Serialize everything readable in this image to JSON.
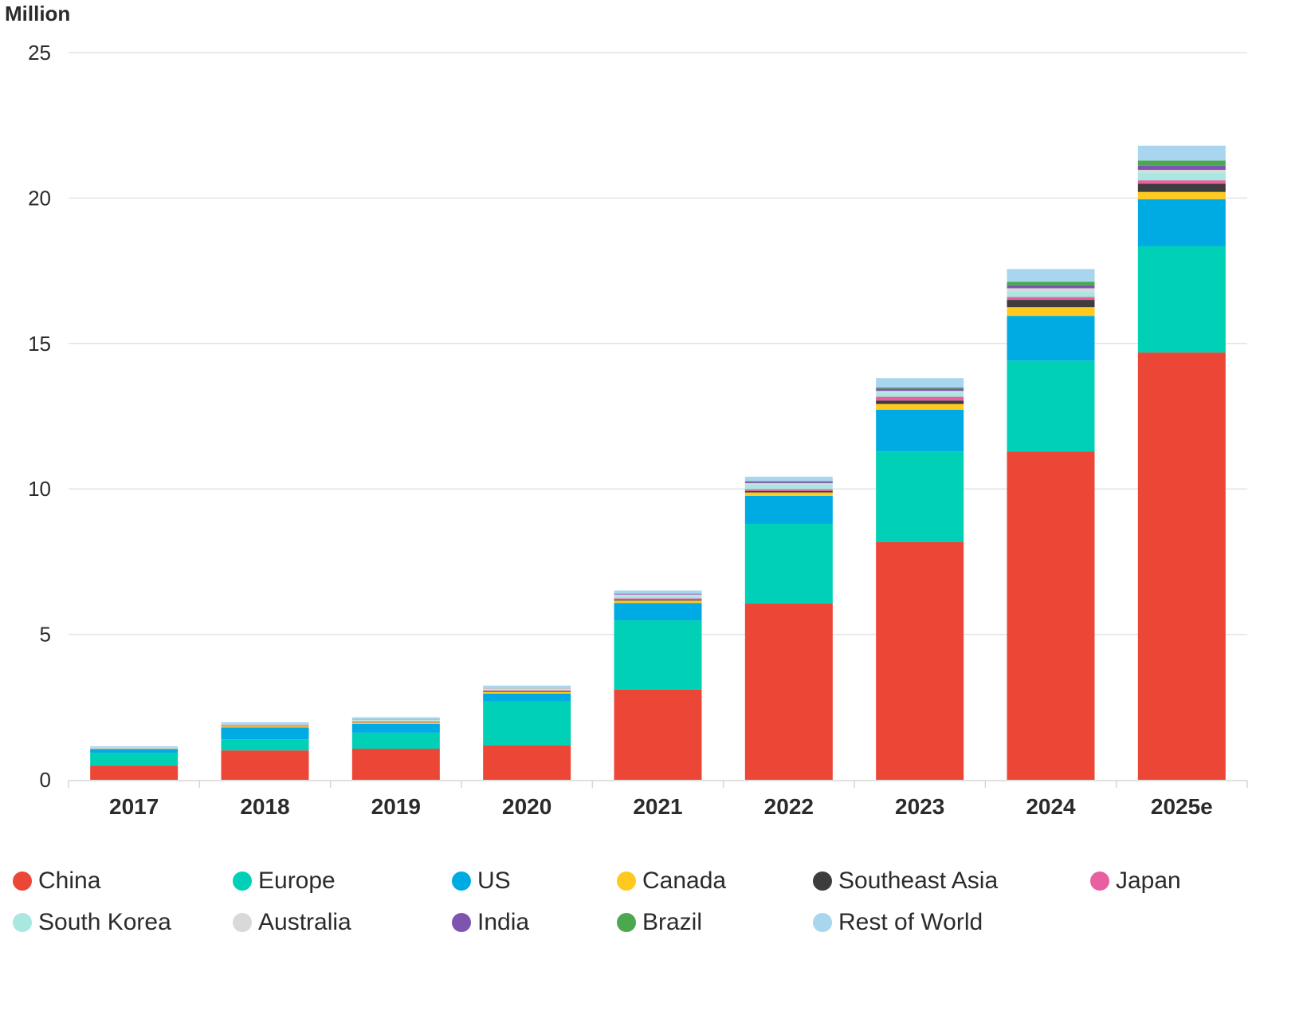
{
  "chart_data": {
    "type": "bar",
    "stacked": true,
    "title": "",
    "xlabel": "",
    "ylabel": "Million",
    "ylim": [
      0,
      25
    ],
    "yticks": [
      0,
      5,
      10,
      15,
      20,
      25
    ],
    "grid": true,
    "legend_position": "bottom",
    "categories": [
      "2017",
      "2018",
      "2019",
      "2020",
      "2021",
      "2022",
      "2023",
      "2024",
      "2025e"
    ],
    "series": [
      {
        "name": "China",
        "color": "#ec4637",
        "values": [
          0.49,
          1.01,
          1.07,
          1.18,
          3.1,
          6.06,
          8.17,
          11.29,
          14.69
        ]
      },
      {
        "name": "Europe",
        "color": "#00d0b5",
        "values": [
          0.44,
          0.38,
          0.55,
          1.51,
          2.38,
          2.74,
          3.12,
          3.12,
          3.65
        ]
      },
      {
        "name": "US",
        "color": "#00abe3",
        "values": [
          0.11,
          0.41,
          0.3,
          0.27,
          0.6,
          0.96,
          1.43,
          1.54,
          1.62
        ]
      },
      {
        "name": "Canada",
        "color": "#ffc91f",
        "values": [
          0.01,
          0.04,
          0.05,
          0.06,
          0.08,
          0.12,
          0.2,
          0.3,
          0.25
        ]
      },
      {
        "name": "Southeast Asia",
        "color": "#3d3d3d",
        "values": [
          0.005,
          0.005,
          0.01,
          0.02,
          0.03,
          0.05,
          0.12,
          0.25,
          0.28
        ]
      },
      {
        "name": "Japan",
        "color": "#e8609f",
        "values": [
          0.02,
          0.03,
          0.03,
          0.03,
          0.05,
          0.06,
          0.13,
          0.1,
          0.12
        ]
      },
      {
        "name": "South Korea",
        "color": "#a9e8e0",
        "values": [
          0.03,
          0.03,
          0.04,
          0.05,
          0.1,
          0.16,
          0.15,
          0.2,
          0.27
        ]
      },
      {
        "name": "Australia",
        "color": "#d9d9d9",
        "values": [
          0.005,
          0.01,
          0.01,
          0.02,
          0.03,
          0.05,
          0.05,
          0.1,
          0.09
        ]
      },
      {
        "name": "India",
        "color": "#7d55b0",
        "values": [
          0.005,
          0.005,
          0.005,
          0.005,
          0.02,
          0.05,
          0.08,
          0.1,
          0.14
        ]
      },
      {
        "name": "Brazil",
        "color": "#4ba84f",
        "values": [
          0.0,
          0.0,
          0.005,
          0.005,
          0.01,
          0.02,
          0.04,
          0.12,
          0.18
        ]
      },
      {
        "name": "Rest of World",
        "color": "#a7d6ee",
        "values": [
          0.04,
          0.06,
          0.08,
          0.09,
          0.11,
          0.15,
          0.32,
          0.44,
          0.51
        ]
      }
    ]
  }
}
